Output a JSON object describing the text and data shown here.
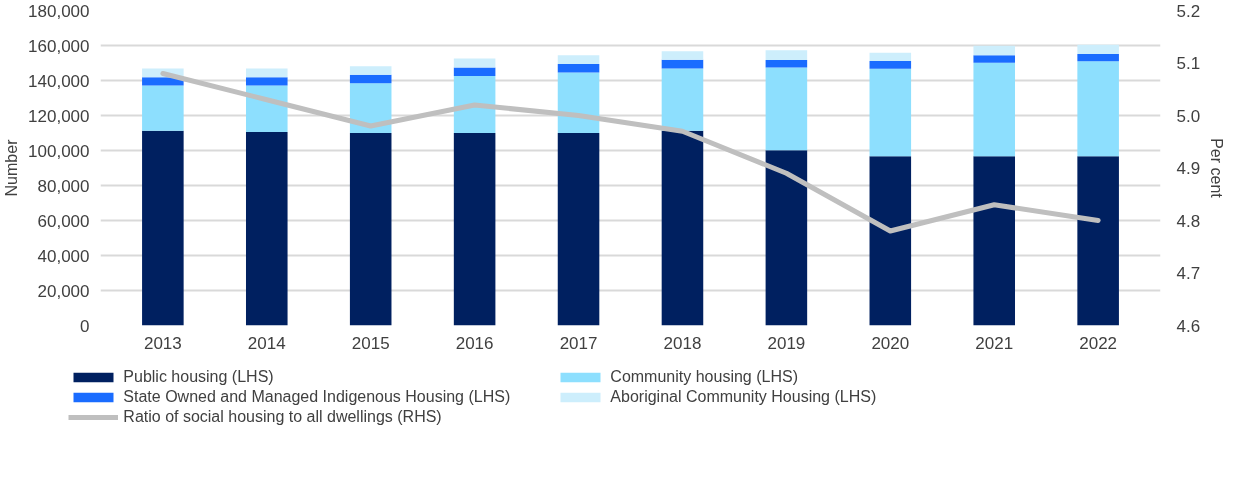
{
  "chart_data": {
    "type": "bar",
    "stacked": true,
    "ylabel": "Number",
    "y2label": "Per cent",
    "categories": [
      "2013",
      "2014",
      "2015",
      "2016",
      "2017",
      "2018",
      "2019",
      "2020",
      "2021",
      "2022"
    ],
    "series": [
      {
        "name": "Public housing (LHS)",
        "color": "#002060",
        "values": [
          111300,
          110600,
          110000,
          110000,
          110000,
          111300,
          100100,
          96700,
          96700,
          96700
        ]
      },
      {
        "name": "Community housing (LHS)",
        "color": "#8ddffe",
        "values": [
          25900,
          26600,
          28400,
          32600,
          34600,
          35600,
          47300,
          50000,
          53500,
          54300
        ]
      },
      {
        "name": "State Owned and Managed Indigenous Housing (LHS)",
        "color": "#1a6cff",
        "values": [
          4700,
          4700,
          4900,
          4900,
          4900,
          4900,
          4300,
          4500,
          4300,
          4100
        ]
      },
      {
        "name": "Aboriginal Community Housing (LHS)",
        "color": "#cdeefc",
        "values": [
          5000,
          5000,
          4900,
          5100,
          4900,
          4900,
          5600,
          4700,
          5400,
          5400
        ]
      },
      {
        "name": "Ratio of social housing to all dwellings (RHS)",
        "type": "line",
        "axis": "y2",
        "color": "#bfbfbf",
        "values": [
          5.08,
          5.03,
          4.98,
          5.02,
          5.0,
          4.97,
          4.89,
          4.78,
          4.83,
          4.8
        ]
      }
    ],
    "ylim": [
      0,
      180000
    ],
    "yticks": [
      {
        "value": 0,
        "label": "0"
      },
      {
        "value": 20000,
        "label": "20,000"
      },
      {
        "value": 40000,
        "label": "40,000"
      },
      {
        "value": 60000,
        "label": "60,000"
      },
      {
        "value": 80000,
        "label": "80,000"
      },
      {
        "value": 100000,
        "label": "100,000"
      },
      {
        "value": 120000,
        "label": "120,000"
      },
      {
        "value": 140000,
        "label": "140,000"
      },
      {
        "value": 160000,
        "label": "160,000"
      },
      {
        "value": 180000,
        "label": "180,000"
      }
    ],
    "y2lim": [
      4.6,
      5.2
    ],
    "y2ticks": [
      4.6,
      4.7,
      4.8,
      4.9,
      {
        "value": 5,
        "label": "5.0"
      },
      5.1,
      5.2
    ],
    "grid": "y",
    "legend": "bottom",
    "line_style": "solid",
    "marker": "none"
  }
}
